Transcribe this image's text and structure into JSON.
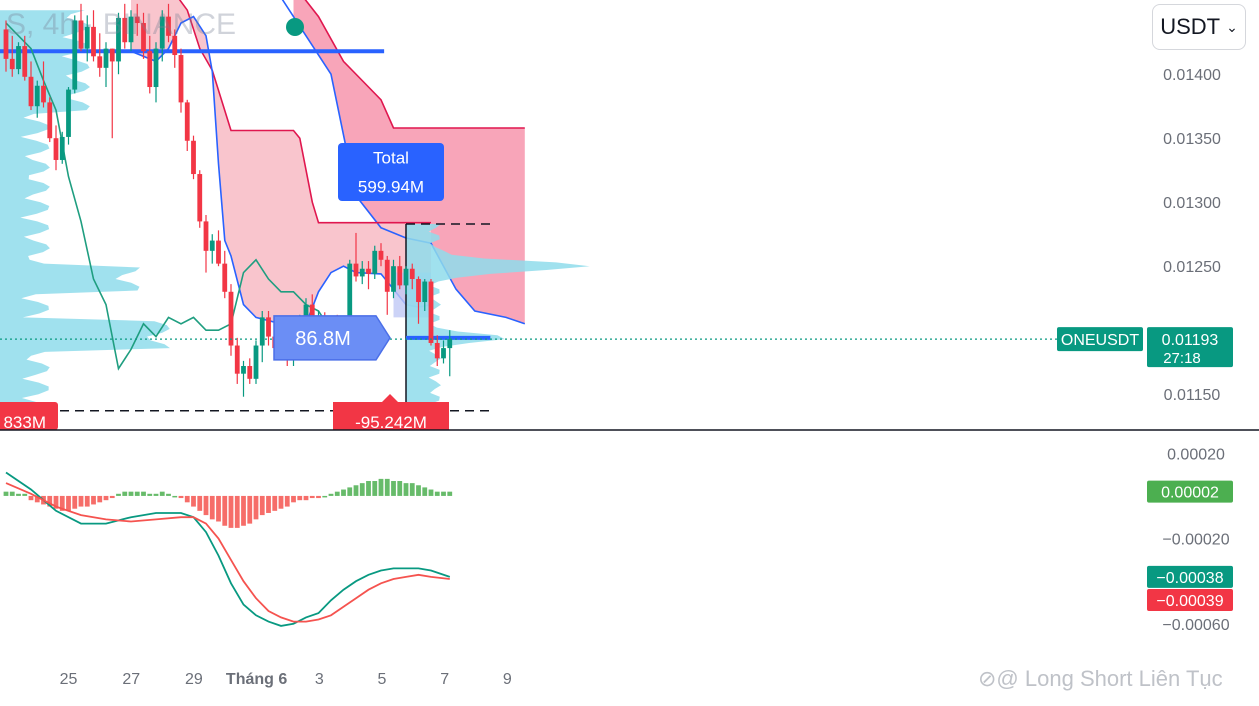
{
  "header": {
    "title_fragment": "S, 4h · BINANCE",
    "currency": "USDT",
    "chevron": "⌄"
  },
  "chart_data": {
    "type": "candlestick",
    "price_axis": {
      "ticks": [
        "0.01400",
        "0.01350",
        "0.01300",
        "0.01250",
        "0.01150"
      ],
      "tick_values": [
        0.014,
        0.0135,
        0.013,
        0.0125,
        0.0115
      ],
      "ylim": [
        0.01122,
        0.01458
      ]
    },
    "macd_axis": {
      "ticks": [
        "0.00020",
        "−0.00020",
        "−0.00060"
      ],
      "tick_values": [
        0.0002,
        -0.0002,
        -0.0006
      ],
      "ylim": [
        -0.00077,
        0.0003
      ]
    },
    "x_ticks": [
      {
        "label": "25",
        "i": 2
      },
      {
        "label": "27",
        "i": 12
      },
      {
        "label": "29",
        "i": 22
      },
      {
        "label": "Tháng 6",
        "i": 32,
        "bold": true
      },
      {
        "label": "3",
        "i": 42
      },
      {
        "label": "5",
        "i": 52
      },
      {
        "label": "7",
        "i": 62
      },
      {
        "label": "9",
        "i": 72
      }
    ],
    "candles": [
      [
        0.01435,
        0.01442,
        0.01402,
        0.01412
      ],
      [
        0.01412,
        0.0143,
        0.01398,
        0.01404
      ],
      [
        0.01404,
        0.01425,
        0.014,
        0.01422
      ],
      [
        0.01422,
        0.0143,
        0.01395,
        0.01398
      ],
      [
        0.01398,
        0.0141,
        0.01372,
        0.01375
      ],
      [
        0.01375,
        0.01395,
        0.01366,
        0.01391
      ],
      [
        0.01391,
        0.0141,
        0.01374,
        0.01378
      ],
      [
        0.01378,
        0.01382,
        0.01347,
        0.0135
      ],
      [
        0.0135,
        0.0136,
        0.01325,
        0.01333
      ],
      [
        0.01333,
        0.01355,
        0.0133,
        0.01351
      ],
      [
        0.01351,
        0.0139,
        0.01345,
        0.01388
      ],
      [
        0.01388,
        0.01446,
        0.01385,
        0.01442
      ],
      [
        0.01442,
        0.01455,
        0.01418,
        0.0142
      ],
      [
        0.0142,
        0.01446,
        0.0141,
        0.01437
      ],
      [
        0.01437,
        0.0145,
        0.0141,
        0.01414
      ],
      [
        0.01414,
        0.01432,
        0.01398,
        0.01405
      ],
      [
        0.01405,
        0.01425,
        0.0139,
        0.0142
      ],
      [
        0.0142,
        0.0142,
        0.0135,
        0.0141
      ],
      [
        0.0141,
        0.01448,
        0.014,
        0.01444
      ],
      [
        0.01444,
        0.01455,
        0.0142,
        0.01425
      ],
      [
        0.01425,
        0.0145,
        0.01418,
        0.01445
      ],
      [
        0.01445,
        0.01455,
        0.0143,
        0.0144
      ],
      [
        0.0144,
        0.01448,
        0.01412,
        0.01418
      ],
      [
        0.01418,
        0.0143,
        0.01385,
        0.0139
      ],
      [
        0.0139,
        0.01425,
        0.01378,
        0.0142
      ],
      [
        0.0142,
        0.0145,
        0.0141,
        0.01445
      ],
      [
        0.01445,
        0.01455,
        0.01425,
        0.0143
      ],
      [
        0.0143,
        0.01435,
        0.01405,
        0.01415
      ],
      [
        0.01415,
        0.0142,
        0.0137,
        0.01378
      ],
      [
        0.01378,
        0.0138,
        0.0134,
        0.01348
      ],
      [
        0.01348,
        0.01352,
        0.01318,
        0.01322
      ],
      [
        0.01322,
        0.01325,
        0.0128,
        0.01285
      ],
      [
        0.01285,
        0.0129,
        0.01245,
        0.01262
      ],
      [
        0.01262,
        0.01275,
        0.01252,
        0.0127
      ],
      [
        0.0127,
        0.01278,
        0.0125,
        0.01252
      ],
      [
        0.01252,
        0.01262,
        0.01225,
        0.0123
      ],
      [
        0.0123,
        0.01236,
        0.0118,
        0.01188
      ],
      [
        0.01188,
        0.01194,
        0.01158,
        0.01166
      ],
      [
        0.01166,
        0.01176,
        0.01148,
        0.01172
      ],
      [
        0.01172,
        0.01178,
        0.01158,
        0.01162
      ],
      [
        0.01162,
        0.01192,
        0.01158,
        0.01188
      ],
      [
        0.01188,
        0.01215,
        0.01175,
        0.0121
      ],
      [
        0.0121,
        0.01215,
        0.01188,
        0.01195
      ],
      [
        0.01195,
        0.01205,
        0.0118,
        0.01186
      ],
      [
        0.01186,
        0.01198,
        0.01178,
        0.01192
      ],
      [
        0.01192,
        0.01196,
        0.01172,
        0.01178
      ],
      [
        0.01178,
        0.01202,
        0.01172,
        0.01198
      ],
      [
        0.01198,
        0.01212,
        0.01185,
        0.01205
      ],
      [
        0.01205,
        0.01225,
        0.0119,
        0.0122
      ],
      [
        0.0122,
        0.01228,
        0.01198,
        0.01202
      ],
      [
        0.01202,
        0.01215,
        0.01188,
        0.0121
      ],
      [
        0.0121,
        0.01214,
        0.01182,
        0.01186
      ],
      [
        0.01186,
        0.01208,
        0.01184,
        0.01205
      ],
      [
        0.01205,
        0.01212,
        0.01184,
        0.01188
      ],
      [
        0.01188,
        0.01202,
        0.01185,
        0.01196
      ],
      [
        0.01196,
        0.01255,
        0.01192,
        0.01252
      ],
      [
        0.01252,
        0.01276,
        0.01238,
        0.01242
      ],
      [
        0.01242,
        0.01254,
        0.01236,
        0.01248
      ],
      [
        0.01248,
        0.01254,
        0.01232,
        0.01244
      ],
      [
        0.01244,
        0.01266,
        0.0124,
        0.01262
      ],
      [
        0.01262,
        0.01268,
        0.0125,
        0.01255
      ],
      [
        0.01255,
        0.01258,
        0.01212,
        0.0123
      ],
      [
        0.0123,
        0.01255,
        0.01225,
        0.0125
      ],
      [
        0.0125,
        0.01258,
        0.01232,
        0.01235
      ],
      [
        0.01235,
        0.0125,
        0.01228,
        0.01248
      ],
      [
        0.01248,
        0.01252,
        0.01232,
        0.0124
      ],
      [
        0.0124,
        0.01242,
        0.01205,
        0.01222
      ],
      [
        0.01222,
        0.0124,
        0.01215,
        0.01238
      ],
      [
        0.01238,
        0.0124,
        0.01188,
        0.0119
      ],
      [
        0.0119,
        0.01196,
        0.01172,
        0.01178
      ],
      [
        0.01178,
        0.01192,
        0.01174,
        0.01186
      ],
      [
        0.01186,
        0.012,
        0.01164,
        0.01193
      ]
    ],
    "last_price": {
      "symbol": "ONEUSDT",
      "price": "0.01193",
      "countdown": "27:18",
      "value": 0.01193
    },
    "macd": {
      "value_labels": [
        {
          "text": "0.00002",
          "value": 2e-05,
          "color": "#4caf50"
        },
        {
          "text": "−0.00038",
          "value": -0.00038,
          "color": "#089981"
        },
        {
          "text": "−0.00039",
          "value": -0.00039,
          "color": "#f23645"
        }
      ],
      "macd_line": [
        [
          0,
          0.00011
        ],
        [
          4,
          3e-05
        ],
        [
          8,
          -7e-05
        ],
        [
          12,
          -0.00013
        ],
        [
          16,
          -0.00013
        ],
        [
          20,
          -0.0001
        ],
        [
          24,
          -8e-05
        ],
        [
          28,
          -8e-05
        ],
        [
          30,
          -0.0001
        ],
        [
          32,
          -0.00017
        ],
        [
          34,
          -0.00028
        ],
        [
          36,
          -0.00041
        ],
        [
          38,
          -0.00051
        ],
        [
          40,
          -0.00056
        ],
        [
          42,
          -0.00059
        ],
        [
          44,
          -0.00061
        ],
        [
          46,
          -0.0006
        ],
        [
          48,
          -0.00057
        ],
        [
          50,
          -0.00055
        ],
        [
          52,
          -0.00049
        ],
        [
          54,
          -0.00044
        ],
        [
          56,
          -0.0004
        ],
        [
          58,
          -0.00037
        ],
        [
          60,
          -0.00035
        ],
        [
          62,
          -0.00034
        ],
        [
          64,
          -0.00034
        ],
        [
          66,
          -0.00034
        ],
        [
          68,
          -0.00035
        ],
        [
          71,
          -0.00038
        ]
      ],
      "signal_line": [
        [
          0,
          6e-05
        ],
        [
          4,
          1e-05
        ],
        [
          8,
          -5e-05
        ],
        [
          12,
          -9e-05
        ],
        [
          16,
          -0.00011
        ],
        [
          20,
          -0.00012
        ],
        [
          24,
          -0.00011
        ],
        [
          28,
          -0.0001
        ],
        [
          30,
          -0.0001
        ],
        [
          32,
          -0.00013
        ],
        [
          34,
          -0.0002
        ],
        [
          36,
          -0.0003
        ],
        [
          38,
          -0.0004
        ],
        [
          40,
          -0.00048
        ],
        [
          42,
          -0.00054
        ],
        [
          44,
          -0.00057
        ],
        [
          46,
          -0.00059
        ],
        [
          48,
          -0.00059
        ],
        [
          50,
          -0.00058
        ],
        [
          52,
          -0.00056
        ],
        [
          54,
          -0.00052
        ],
        [
          56,
          -0.00048
        ],
        [
          58,
          -0.00044
        ],
        [
          60,
          -0.00041
        ],
        [
          62,
          -0.00039
        ],
        [
          64,
          -0.00038
        ],
        [
          66,
          -0.00037
        ],
        [
          68,
          -0.00038
        ],
        [
          71,
          -0.00039
        ]
      ],
      "histogram": [
        2e-05,
        2e-05,
        1e-05,
        1e-05,
        -2e-05,
        -3e-05,
        -4e-05,
        -5e-05,
        -6e-05,
        -7e-05,
        -7e-05,
        -6e-05,
        -5e-05,
        -5e-05,
        -4e-05,
        -3e-05,
        -2e-05,
        -1e-05,
        1e-05,
        2e-05,
        2e-05,
        2e-05,
        2e-05,
        1e-05,
        1e-05,
        2e-05,
        1e-05,
        0.0,
        -1e-05,
        -3e-05,
        -5e-05,
        -7e-05,
        -9e-05,
        -0.00011,
        -0.00012,
        -0.00014,
        -0.00015,
        -0.00015,
        -0.00014,
        -0.00013,
        -0.00011,
        -9e-05,
        -8e-05,
        -7e-05,
        -6e-05,
        -5e-05,
        -3e-05,
        -2e-05,
        -2e-05,
        -1e-05,
        -1e-05,
        0.0,
        1e-05,
        2e-05,
        3e-05,
        4e-05,
        5e-05,
        6e-05,
        7e-05,
        7e-05,
        8e-05,
        8e-05,
        7e-05,
        7e-05,
        6e-05,
        6e-05,
        5e-05,
        4e-05,
        3e-05,
        2e-05,
        2e-05,
        2e-05
      ]
    },
    "ichimoku": {
      "upper": [
        [
          0,
          0.0147
        ],
        [
          15,
          0.0147
        ],
        [
          20,
          0.0147
        ],
        [
          26,
          0.0147
        ],
        [
          29,
          0.0145
        ],
        [
          31,
          0.0142
        ],
        [
          33,
          0.01403
        ],
        [
          36,
          0.01356
        ],
        [
          46,
          0.01356
        ],
        [
          47,
          0.0135
        ],
        [
          49,
          0.013
        ],
        [
          50,
          0.01284
        ],
        [
          66,
          0.01284
        ],
        [
          68,
          0.01284
        ]
      ],
      "lower": [
        [
          15,
          0.01418
        ],
        [
          20,
          0.01418
        ],
        [
          24,
          0.0141
        ],
        [
          26,
          0.0142
        ],
        [
          28,
          0.0144
        ],
        [
          30,
          0.01445
        ],
        [
          32,
          0.0143
        ],
        [
          33,
          0.01402
        ],
        [
          34,
          0.0133
        ],
        [
          35,
          0.0127
        ],
        [
          36,
          0.01258
        ],
        [
          38,
          0.0122
        ],
        [
          40,
          0.0121
        ],
        [
          44,
          0.01205
        ],
        [
          48,
          0.01205
        ],
        [
          50,
          0.0123
        ],
        [
          52,
          0.01245
        ],
        [
          54,
          0.0125
        ],
        [
          56,
          0.01245
        ],
        [
          60,
          0.01244
        ],
        [
          62,
          0.01232
        ],
        [
          64,
          0.0122
        ],
        [
          66,
          0.01218
        ],
        [
          68,
          0.0122
        ]
      ],
      "future_upper": [
        [
          46,
          0.0147
        ],
        [
          50,
          0.01445
        ],
        [
          54,
          0.0141
        ],
        [
          58,
          0.0139
        ],
        [
          60,
          0.0138
        ],
        [
          62,
          0.01358
        ],
        [
          83,
          0.01358
        ]
      ],
      "future_lower": [
        [
          40,
          0.0147
        ],
        [
          44,
          0.0146
        ],
        [
          48,
          0.0143
        ],
        [
          52,
          0.014
        ],
        [
          56,
          0.01305
        ],
        [
          60,
          0.0128
        ],
        [
          64,
          0.01272
        ],
        [
          68,
          0.01268
        ],
        [
          70,
          0.0125
        ],
        [
          72,
          0.01232
        ],
        [
          75,
          0.01215
        ],
        [
          80,
          0.0121
        ],
        [
          83,
          0.01205
        ]
      ]
    },
    "volume_profile": {
      "poc_label": "86.8M",
      "total_label": "Total",
      "total_value": "599.94M",
      "neg_label": "-95.242M",
      "left_label": "833M",
      "box_top": 0.01283,
      "box_bottom": 0.01137,
      "poc_price": 0.01194
    },
    "chikou": [
      [
        0,
        0.0144
      ],
      [
        2,
        0.0143
      ],
      [
        4,
        0.0142
      ],
      [
        6,
        0.01395
      ],
      [
        8,
        0.01372
      ],
      [
        10,
        0.0132
      ],
      [
        12,
        0.01285
      ],
      [
        14,
        0.0124
      ],
      [
        16,
        0.0122
      ],
      [
        18,
        0.0117
      ],
      [
        20,
        0.01185
      ],
      [
        22,
        0.01205
      ],
      [
        24,
        0.01195
      ],
      [
        26,
        0.0121
      ],
      [
        28,
        0.01205
      ],
      [
        30,
        0.0121
      ],
      [
        32,
        0.012
      ],
      [
        34,
        0.012
      ],
      [
        36,
        0.01205
      ],
      [
        38,
        0.01245
      ],
      [
        40,
        0.01255
      ],
      [
        42,
        0.0124
      ],
      [
        44,
        0.0123
      ],
      [
        46,
        0.0123
      ],
      [
        48,
        0.0122
      ],
      [
        50,
        0.01215
      ],
      [
        52,
        0.012
      ],
      [
        54,
        0.0119
      ],
      [
        56,
        0.012
      ],
      [
        58,
        0.01205
      ]
    ]
  },
  "watermark": "Long Short Liên Tục"
}
